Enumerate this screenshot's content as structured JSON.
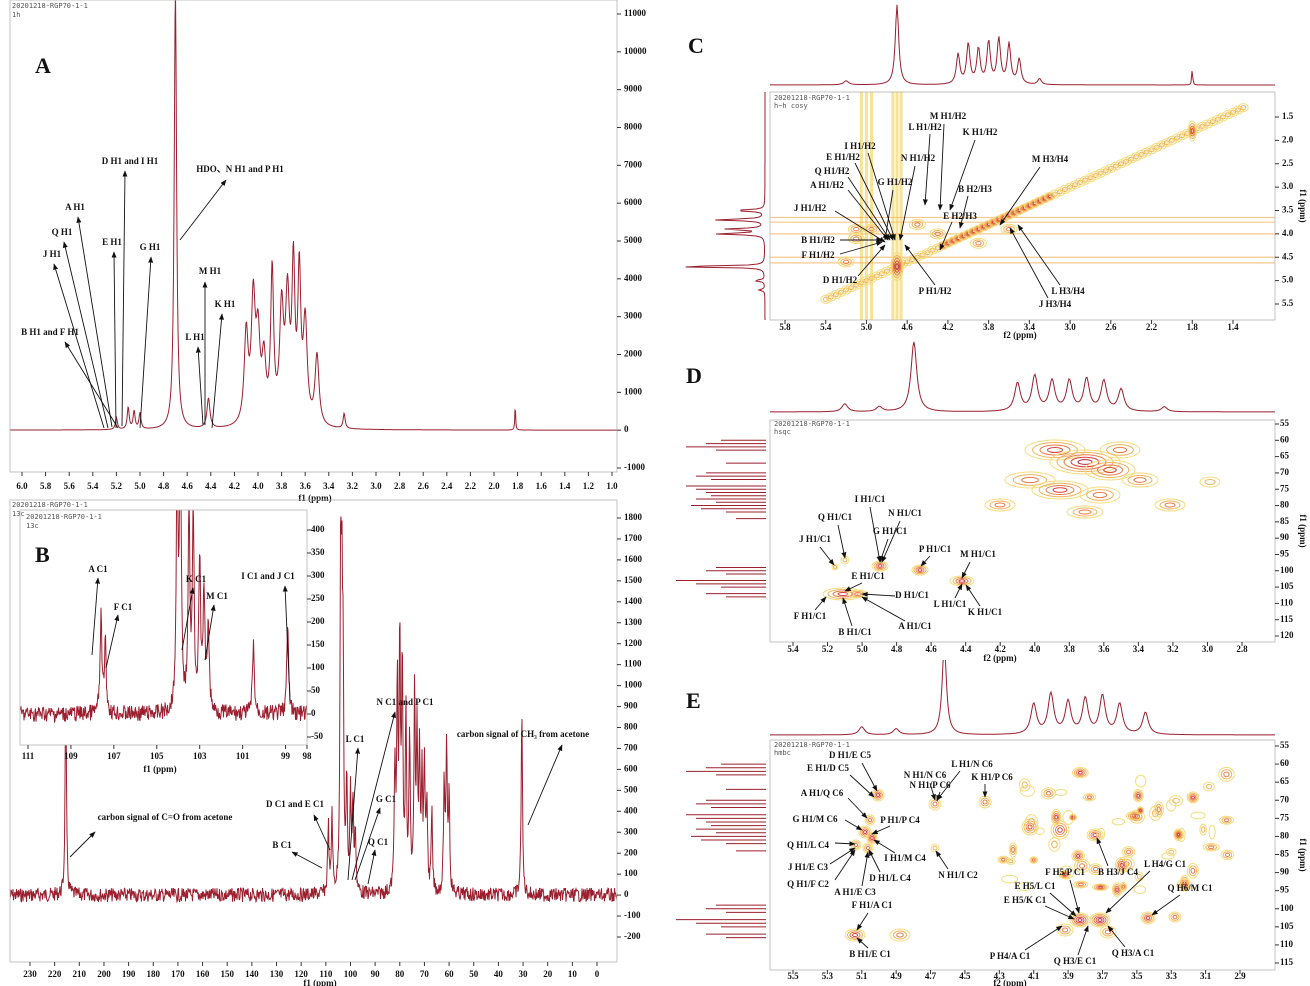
{
  "panels": [
    {
      "letter": "A",
      "header": [
        "20201218-RGP70-1-1",
        "1h"
      ],
      "x_label": "f1 (ppm)",
      "x_ticks": [
        "6.0",
        "5.8",
        "5.6",
        "5.4",
        "5.2",
        "5.0",
        "4.8",
        "4.6",
        "4.4",
        "4.2",
        "4.0",
        "3.8",
        "3.6",
        "3.4",
        "3.2",
        "3.0",
        "2.8",
        "2.6",
        "2.4",
        "2.2",
        "2.0",
        "1.8",
        "1.6",
        "1.4",
        "1.2",
        "1.0"
      ],
      "y_ticks": [
        "-1000",
        "0",
        "1000",
        "2000",
        "3000",
        "4000",
        "5000",
        "6000",
        "7000",
        "8000",
        "9000",
        "10000",
        "11000"
      ],
      "annotations": [
        "D H1 and I H1",
        "HDO、N H1 and P H1",
        "A H1",
        "Q H1",
        "E H1",
        "G H1",
        "J H1",
        "M H1",
        "K H1",
        "L H1",
        "B H1 and F H1"
      ]
    },
    {
      "letter": "B",
      "header": [
        "20201218-RGP70-1-1",
        "13c"
      ],
      "x_label": "f1 (ppm)",
      "x_ticks": [
        "230",
        "220",
        "210",
        "200",
        "190",
        "180",
        "170",
        "160",
        "150",
        "140",
        "130",
        "120",
        "110",
        "100",
        "90",
        "80",
        "70",
        "60",
        "50",
        "40",
        "30",
        "20",
        "10",
        "0"
      ],
      "y_ticks": [
        "-200",
        "-100",
        "0",
        "100",
        "200",
        "300",
        "400",
        "500",
        "600",
        "700",
        "800",
        "900",
        "1000",
        "1100",
        "1200",
        "1300",
        "1400",
        "1500",
        "1600",
        "1700",
        "1800"
      ],
      "inset": {
        "header": [
          "20201218-RGP70-1-1",
          "13c"
        ],
        "x_label": "f1 (ppm)",
        "x_ticks": [
          "111",
          "109",
          "107",
          "105",
          "103",
          "101",
          "99",
          "98"
        ],
        "y_ticks": [
          "-50",
          "0",
          "50",
          "100",
          "150",
          "200",
          "250",
          "300",
          "350",
          "400"
        ]
      },
      "annotations": [
        "A C1",
        "F C1",
        "K C1",
        "M C1",
        "I C1 and J C1",
        "carbon signal of C=O from acetone",
        "carbon signal of CH₃ from acetone",
        "D C1 and E C1",
        "B C1",
        "N C1 and P C1",
        "L C1",
        "G C1",
        "Q C1"
      ]
    },
    {
      "letter": "C",
      "header": [
        "20201218-RGP70-1-1",
        "h~h cosy"
      ],
      "x_label": "f2 (ppm)",
      "y_label": "f1 (ppm)",
      "x_ticks": [
        "5.8",
        "5.4",
        "5.0",
        "4.6",
        "4.2",
        "3.8",
        "3.4",
        "3.0",
        "2.6",
        "2.2",
        "1.8",
        "1.4"
      ],
      "y_ticks": [
        "1.5",
        "2.0",
        "2.5",
        "3.0",
        "3.5",
        "4.0",
        "4.5",
        "5.0",
        "5.5"
      ],
      "annotations": [
        "M H1/H2",
        "L H1/H2",
        "K H1/H2",
        "I H1/H2",
        "E H1/H2",
        "N H1/H2",
        "Q H1/H2",
        "A H1/H2",
        "G H1/H2",
        "M H3/H4",
        "B H2/H3",
        "J H1/H2",
        "E H2/H3",
        "B H1/H2",
        "F H1/H2",
        "D H1/H2",
        "P H1/H2",
        "L H3/H4",
        "J H3/H4"
      ]
    },
    {
      "letter": "D",
      "header": [
        "20201218-RGP70-1-1",
        "hsqc"
      ],
      "x_label": "f2 (ppm)",
      "y_label": "f1 (ppm)",
      "x_ticks": [
        "5.4",
        "5.2",
        "5.0",
        "4.8",
        "4.6",
        "4.4",
        "4.2",
        "4.0",
        "3.8",
        "3.6",
        "3.4",
        "3.2",
        "3.0",
        "2.8"
      ],
      "y_ticks": [
        "55",
        "60",
        "65",
        "70",
        "75",
        "80",
        "85",
        "90",
        "95",
        "100",
        "105",
        "110",
        "115",
        "120"
      ],
      "annotations": [
        "I H1/C1",
        "Q H1/C1",
        "N H1/C1",
        "G H1/C1",
        "J H1/C1",
        "P H1/C1",
        "M H1/C1",
        "E H1/C1",
        "D H1/C1",
        "L H1/C1",
        "F H1/C1",
        "K H1/C1",
        "B H1/C1",
        "A H1/C1"
      ]
    },
    {
      "letter": "E",
      "header": [
        "20201218-RGP70-1-1",
        "hmbc"
      ],
      "x_label": "f2 (ppm)",
      "y_label": "f1 (ppm)",
      "x_ticks": [
        "5.5",
        "5.3",
        "5.1",
        "4.9",
        "4.7",
        "4.5",
        "4.3",
        "4.1",
        "3.9",
        "3.7",
        "3.5",
        "3.3",
        "3.1",
        "2.9"
      ],
      "y_ticks": [
        "55",
        "60",
        "65",
        "70",
        "75",
        "80",
        "85",
        "90",
        "95",
        "100",
        "105",
        "110",
        "115"
      ],
      "annotations": [
        "D H1/E C5",
        "E H1/D C5",
        "L H1/N C6",
        "N H1/N C6",
        "N H1/P C6",
        "K H1/P C6",
        "A H1/Q C6",
        "G H1/M C6",
        "P H1/P C4",
        "Q H1/L C4",
        "I H1/M C4",
        "J H1/E C3",
        "D H1/L C4",
        "N H1/I C2",
        "Q H1/F C2",
        "A H1/E C3",
        "F H1/A C1",
        "F H5/P C1",
        "B H3/J C4",
        "L H4/G C1",
        "E H5/L C1",
        "Q H6/M C1",
        "E H5/K C1",
        "P H4/A C1",
        "Q H3/E C1",
        "Q H3/A C1",
        "B H1/E C1"
      ]
    }
  ]
}
